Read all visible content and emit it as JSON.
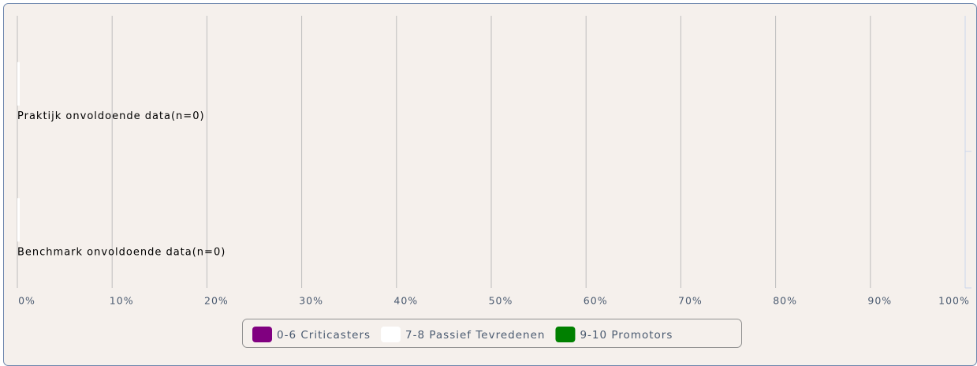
{
  "chart_data": {
    "type": "bar",
    "orientation": "horizontal",
    "stacked": true,
    "categories": [
      "Praktijk onvoldoende data(n=0)",
      "Benchmark onvoldoende data(n=0)"
    ],
    "series": [
      {
        "name": "0-6 Criticasters",
        "color": "#800080",
        "values": [
          0,
          0
        ]
      },
      {
        "name": "7-8 Passief Tevredenen",
        "color": "#ffffff",
        "values": [
          0,
          0
        ]
      },
      {
        "name": "9-10 Promotors",
        "color": "#008000",
        "values": [
          0,
          0
        ]
      }
    ],
    "xlim": [
      0,
      100
    ],
    "xticks": [
      {
        "value": 0,
        "label": "0%"
      },
      {
        "value": 10,
        "label": "10%"
      },
      {
        "value": 20,
        "label": "20%"
      },
      {
        "value": 30,
        "label": "30%"
      },
      {
        "value": 40,
        "label": "40%"
      },
      {
        "value": 50,
        "label": "50%"
      },
      {
        "value": 60,
        "label": "60%"
      },
      {
        "value": 70,
        "label": "70%"
      },
      {
        "value": 80,
        "label": "80%"
      },
      {
        "value": 90,
        "label": "90%"
      },
      {
        "value": 100,
        "label": "100%"
      }
    ],
    "grid": true,
    "legend": "bottom"
  }
}
